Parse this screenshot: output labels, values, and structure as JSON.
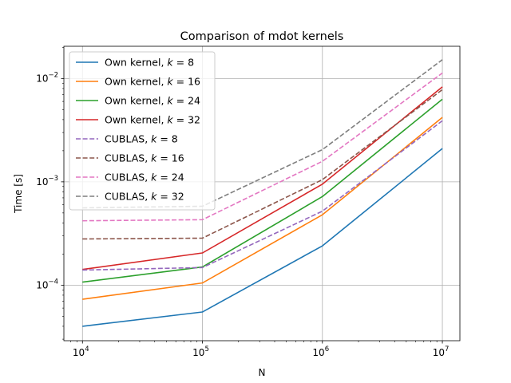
{
  "chart_data": {
    "type": "line",
    "title": "Comparison of mdot kernels",
    "xlabel": "N",
    "ylabel": "Time [s]",
    "xscale": "log",
    "yscale": "log",
    "x": [
      10000,
      100000,
      1000000,
      10000000
    ],
    "x_tick_labels": [
      {
        "base": "10",
        "exp": "4"
      },
      {
        "base": "10",
        "exp": "5"
      },
      {
        "base": "10",
        "exp": "6"
      },
      {
        "base": "10",
        "exp": "7"
      }
    ],
    "y_tick_labels": [
      {
        "base": "10",
        "exp": "−4"
      },
      {
        "base": "10",
        "exp": "−3"
      },
      {
        "base": "10",
        "exp": "−2"
      }
    ],
    "xlim": [
      7000,
      14000000
    ],
    "ylim": [
      2.9e-05,
      0.0205
    ],
    "grid": true,
    "legend_position": "top-left",
    "series": [
      {
        "prefix": "Own kernel, ",
        "k": "8",
        "color": "#1f77b4",
        "dashed": false,
        "values": [
          4e-05,
          5.5e-05,
          0.00024,
          0.0021
        ]
      },
      {
        "prefix": "Own kernel, ",
        "k": "16",
        "color": "#ff7f0e",
        "dashed": false,
        "values": [
          7.3e-05,
          0.000105,
          0.00048,
          0.0042
        ]
      },
      {
        "prefix": "Own kernel, ",
        "k": "24",
        "color": "#2ca02c",
        "dashed": false,
        "values": [
          0.000107,
          0.00015,
          0.00072,
          0.0063
        ]
      },
      {
        "prefix": "Own kernel, ",
        "k": "32",
        "color": "#d62728",
        "dashed": false,
        "values": [
          0.000142,
          0.000205,
          0.00095,
          0.0083
        ]
      },
      {
        "prefix": "CUBLAS, ",
        "k": "8",
        "color": "#9467bd",
        "dashed": true,
        "values": [
          0.00014,
          0.000148,
          0.00052,
          0.0039
        ]
      },
      {
        "prefix": "CUBLAS, ",
        "k": "16",
        "color": "#8c564b",
        "dashed": true,
        "values": [
          0.00028,
          0.000285,
          0.00105,
          0.0078
        ]
      },
      {
        "prefix": "CUBLAS, ",
        "k": "24",
        "color": "#e377c2",
        "dashed": true,
        "values": [
          0.00042,
          0.00043,
          0.00158,
          0.0113
        ]
      },
      {
        "prefix": "CUBLAS, ",
        "k": "32",
        "color": "#7f7f7f",
        "dashed": true,
        "values": [
          0.00056,
          0.00058,
          0.00205,
          0.0152
        ]
      }
    ]
  }
}
